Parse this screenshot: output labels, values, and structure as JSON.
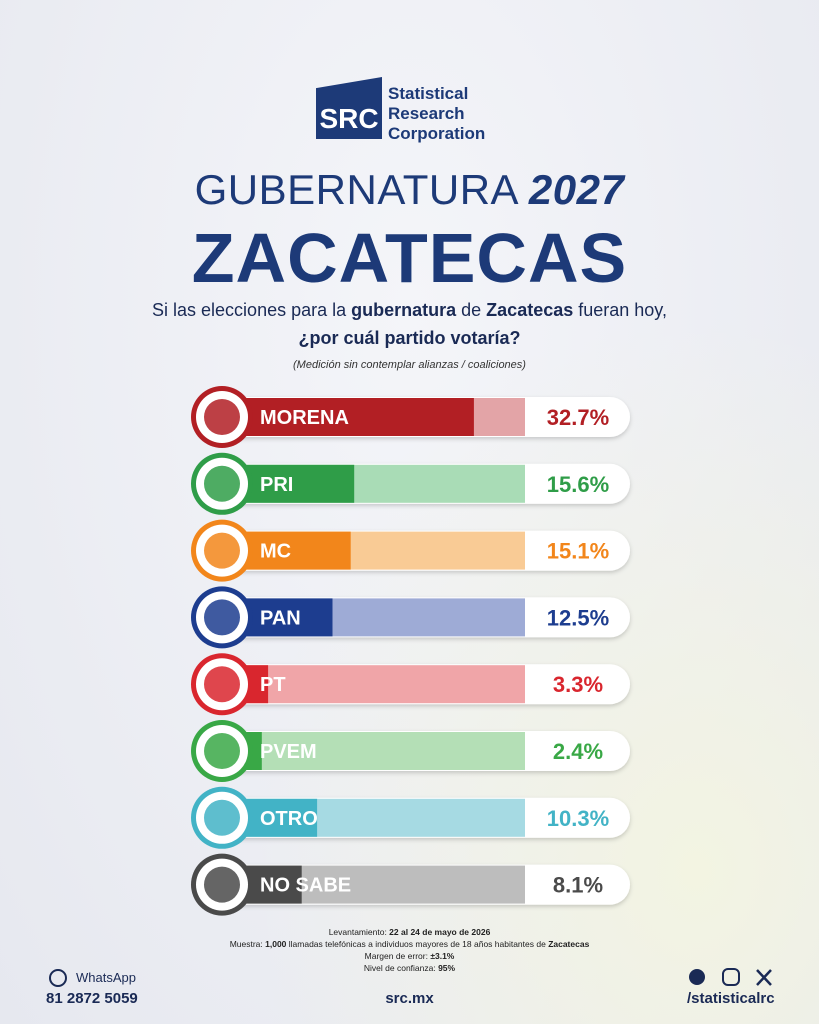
{
  "header": {
    "logo": "SRC",
    "brand": [
      "Statistical",
      "Research",
      "Corporation"
    ],
    "title": "GUBERNATURA",
    "year": "2027",
    "state": "ZACATECAS",
    "question": [
      {
        "text": "Si las elecciones para la ",
        "bold": false
      },
      {
        "text": "gubernatura",
        "bold": true
      },
      {
        "text": " de ",
        "bold": false
      },
      {
        "text": "Zacatecas",
        "bold": true
      },
      {
        "text": " fueran hoy,",
        "bold": false
      }
    ],
    "question2": "¿por cuál partido votaría?",
    "note": "(Medición sin contemplar alianzas / coaliciones)"
  },
  "chart_data": {
    "type": "bar",
    "orientation": "horizontal",
    "categories": [
      "MORENA",
      "PRI",
      "MC",
      "PAN",
      "PT",
      "PVEM",
      "OTRO",
      "NO SABE"
    ],
    "values": [
      32.7,
      15.6,
      15.1,
      12.5,
      3.3,
      2.4,
      10.3,
      8.1
    ],
    "value_labels": [
      "32.7%",
      "15.6%",
      "15.1%",
      "12.5%",
      "3.3%",
      "2.4%",
      "10.3%",
      "8.1%"
    ],
    "colors": [
      "#b21f24",
      "#2f9d48",
      "#f2861b",
      "#1d3d8f",
      "#d9262e",
      "#39a846",
      "#42b3c6",
      "#4a4a4a"
    ],
    "light_colors": [
      "#e3a4a7",
      "#a9dcb6",
      "#f9cb95",
      "#9eabd6",
      "#f0a5a8",
      "#b4dfb6",
      "#a6dae3",
      "#bdbdbd"
    ]
  },
  "footer": {
    "methodology": [
      [
        {
          "text": "Levantamiento: ",
          "bold": false
        },
        {
          "text": "22 al 24 de mayo de 2026",
          "bold": true
        }
      ],
      [
        {
          "text": "Muestra: ",
          "bold": false
        },
        {
          "text": "1,000",
          "bold": true
        },
        {
          "text": " llamadas telefónicas a individuos mayores de 18 años habitantes de ",
          "bold": false
        },
        {
          "text": "Zacatecas",
          "bold": true
        }
      ],
      [
        {
          "text": "Margen de error: ",
          "bold": false
        },
        {
          "text": "±3.1%",
          "bold": true
        }
      ],
      [
        {
          "text": "Nivel de confianza: ",
          "bold": false
        },
        {
          "text": "95%",
          "bold": true
        }
      ]
    ],
    "whatsapp": "WhatsApp",
    "phone": "81 2872 5059",
    "website": "src.mx",
    "social": "/statisticalrc"
  }
}
